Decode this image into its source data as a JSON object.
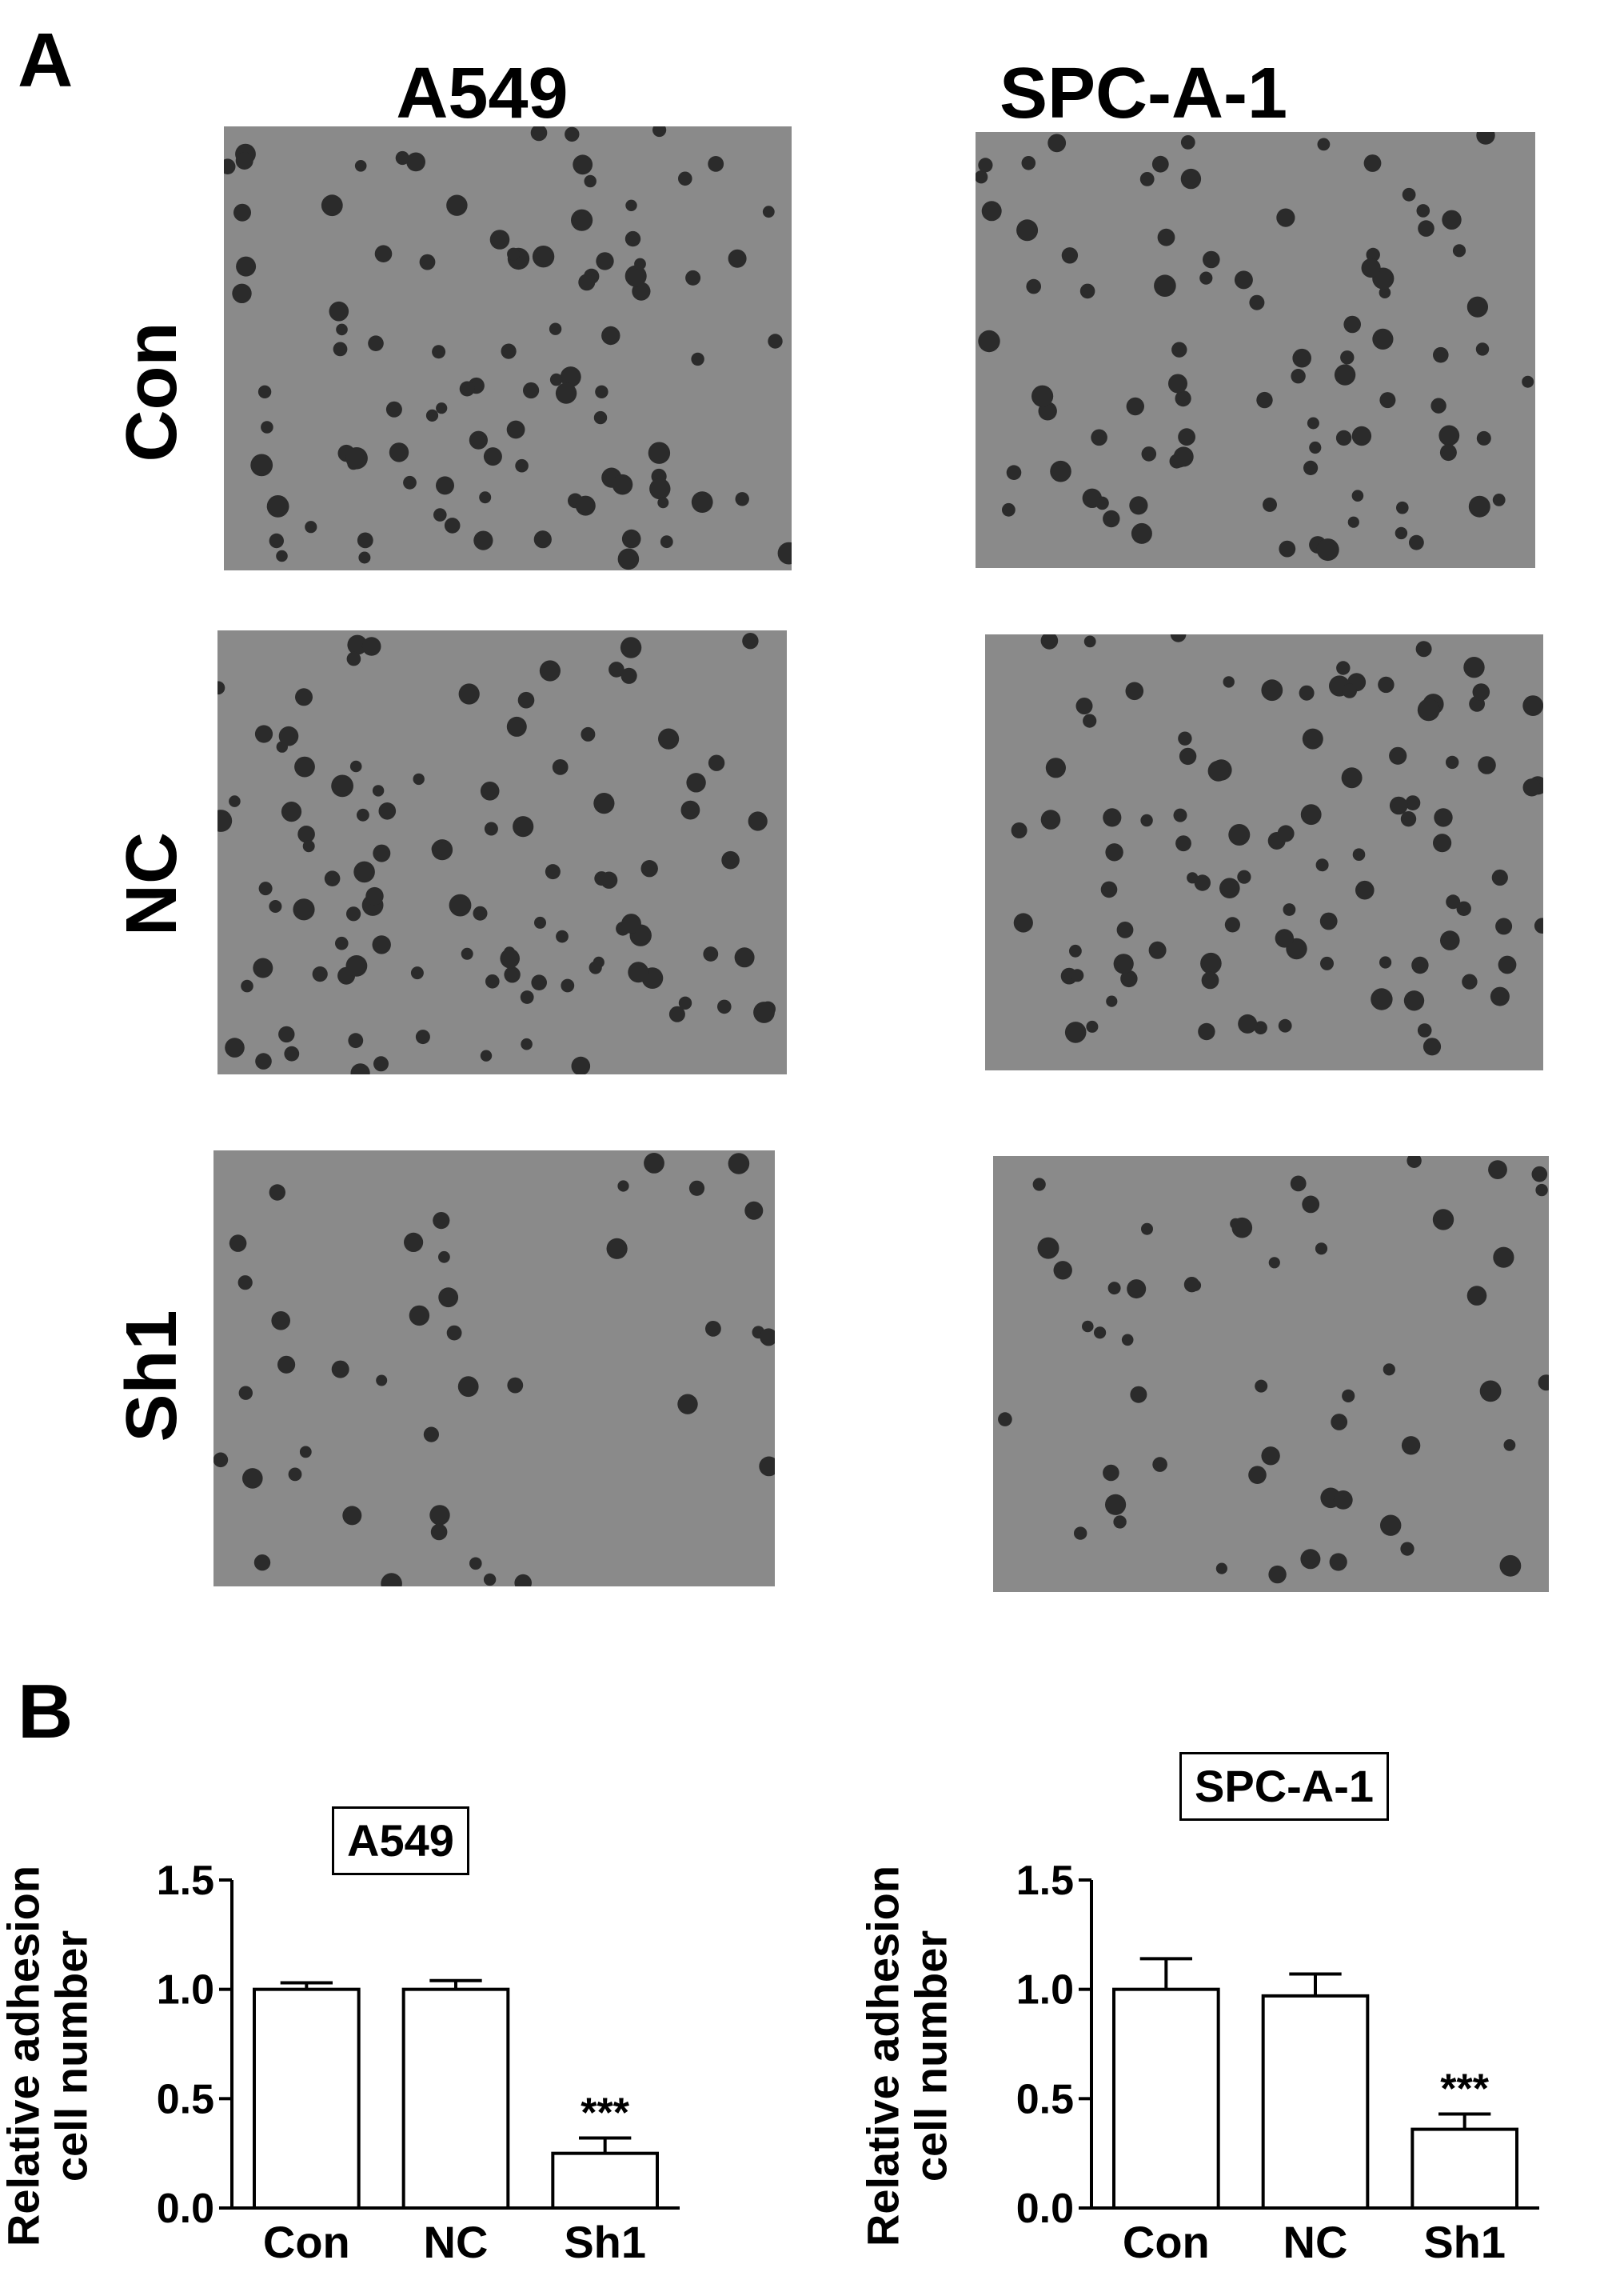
{
  "panel_a": {
    "letter": "A",
    "columns": [
      "A549",
      "SPC-A-1"
    ],
    "rows": [
      "Con",
      "NC",
      "Sh1"
    ],
    "image_fill": "#8a8a8a",
    "cell_color": "#2b2b2b"
  },
  "panel_b": {
    "letter": "B"
  },
  "chart_data": [
    {
      "type": "bar",
      "title": "A549",
      "ylabel": "Relative adhesion cell number",
      "ylabel_lines": [
        "Relative adhesion",
        "cell number"
      ],
      "categories": [
        "Con",
        "NC",
        "Sh1"
      ],
      "values": [
        1.0,
        1.0,
        0.25
      ],
      "errors": [
        0.03,
        0.04,
        0.07
      ],
      "annotations": [
        "",
        "",
        "***"
      ],
      "ylim": [
        0,
        1.5
      ],
      "yticks": [
        "0.0",
        "0.5",
        "1.0",
        "1.5"
      ],
      "bar_color": "#ffffff",
      "edge_color": "#000000",
      "grid": false
    },
    {
      "type": "bar",
      "title": "SPC-A-1",
      "ylabel": "Relative adhesion cell number",
      "ylabel_lines": [
        "Relative adhesion",
        "cell number"
      ],
      "categories": [
        "Con",
        "NC",
        "Sh1"
      ],
      "values": [
        1.0,
        0.97,
        0.36
      ],
      "errors": [
        0.14,
        0.1,
        0.07
      ],
      "annotations": [
        "",
        "",
        "***"
      ],
      "ylim": [
        0,
        1.5
      ],
      "yticks": [
        "0.0",
        "0.5",
        "1.0",
        "1.5"
      ],
      "bar_color": "#ffffff",
      "edge_color": "#000000",
      "grid": false
    }
  ]
}
